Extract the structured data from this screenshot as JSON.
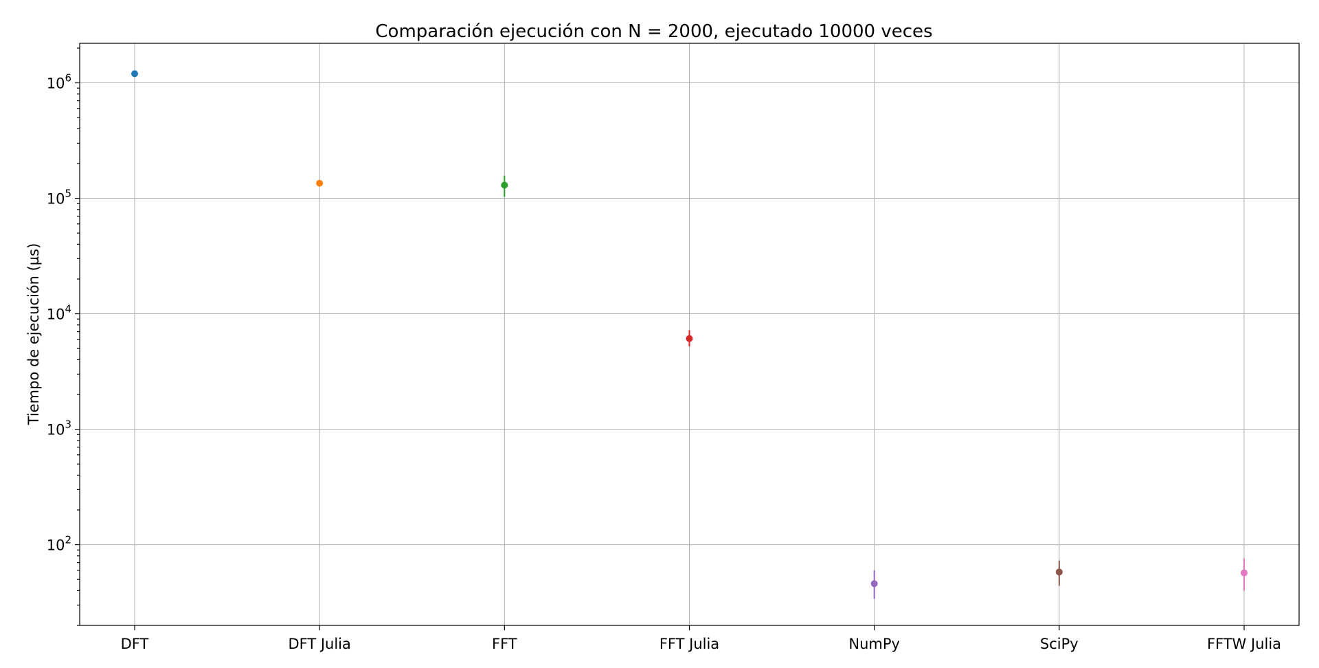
{
  "chart_data": {
    "type": "scatter",
    "title": "Comparación ejecución con N = 2000, ejecutado 10000 veces",
    "xlabel": "",
    "ylabel": "Tiempo de ejecución (µs)",
    "yscale": "log",
    "ylim": [
      20,
      2200000
    ],
    "grid": true,
    "categories": [
      "DFT",
      "DFT Julia",
      "FFT",
      "FFT Julia",
      "NumPy",
      "SciPy",
      "FFTW Julia"
    ],
    "yticks": [
      {
        "value": 100,
        "base": "10",
        "exp": "2"
      },
      {
        "value": 1000,
        "base": "10",
        "exp": "3"
      },
      {
        "value": 10000,
        "base": "10",
        "exp": "4"
      },
      {
        "value": 100000,
        "base": "10",
        "exp": "5"
      },
      {
        "value": 1000000,
        "base": "10",
        "exp": "6"
      }
    ],
    "points": [
      {
        "category": "DFT",
        "value": 1200000,
        "err_low": 1150000,
        "err_high": 1260000,
        "color": "#1f77b4"
      },
      {
        "category": "DFT Julia",
        "value": 135000,
        "err_low": 128000,
        "err_high": 143000,
        "color": "#ff7f0e"
      },
      {
        "category": "FFT",
        "value": 130000,
        "err_low": 103000,
        "err_high": 157000,
        "color": "#2ca02c"
      },
      {
        "category": "FFT Julia",
        "value": 6100,
        "err_low": 5200,
        "err_high": 7200,
        "color": "#d62728"
      },
      {
        "category": "NumPy",
        "value": 46,
        "err_low": 34,
        "err_high": 60,
        "color": "#9467bd"
      },
      {
        "category": "SciPy",
        "value": 58,
        "err_low": 44,
        "err_high": 73,
        "color": "#8c564b"
      },
      {
        "category": "FFTW Julia",
        "value": 57,
        "err_low": 40,
        "err_high": 76,
        "color": "#e377c2"
      }
    ]
  }
}
